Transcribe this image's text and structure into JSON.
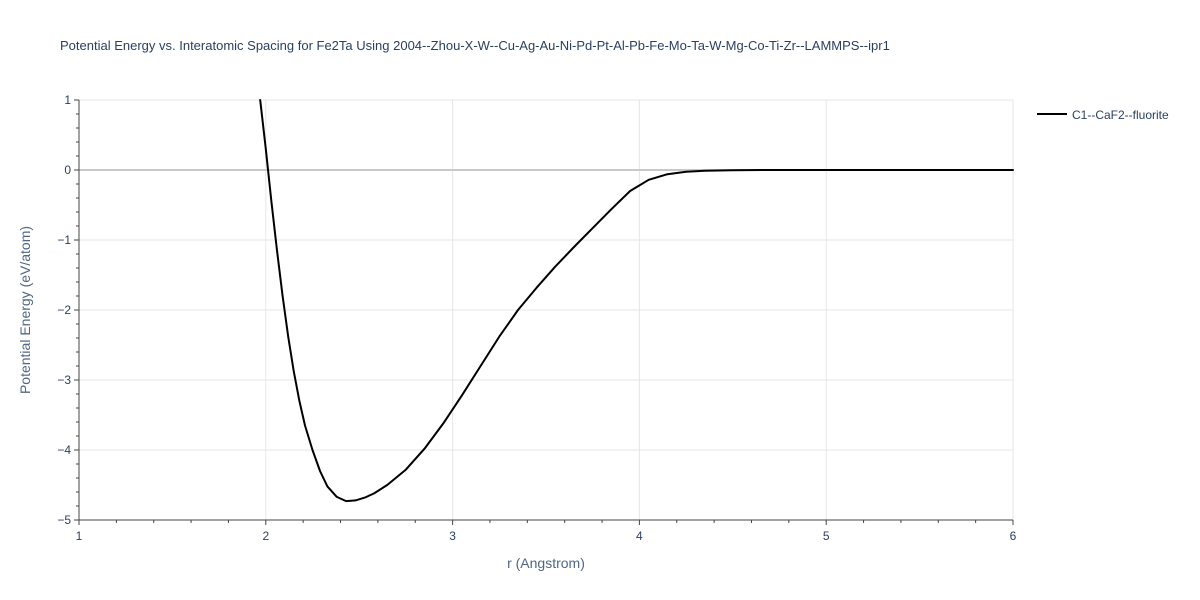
{
  "chart_data": {
    "type": "line",
    "title": "Potential Energy vs. Interatomic Spacing for Fe2Ta Using 2004--Zhou-X-W--Cu-Ag-Au-Ni-Pd-Pt-Al-Pb-Fe-Mo-Ta-W-Mg-Co-Ti-Zr--LAMMPS--ipr1",
    "xlabel": "r (Angstrom)",
    "ylabel": "Potential Energy (eV/atom)",
    "xlim": [
      1,
      6
    ],
    "ylim": [
      -5,
      1
    ],
    "xticks": [
      "1",
      "2",
      "3",
      "4",
      "5",
      "6"
    ],
    "yticks": [
      "1",
      "0",
      "−1",
      "−2",
      "−3",
      "−4",
      "−5"
    ],
    "grid": true,
    "legend_position": "top-right",
    "series": [
      {
        "name": "C1--CaF2--fluorite",
        "color": "#000000",
        "x": [
          1.97,
          2.0,
          2.03,
          2.06,
          2.09,
          2.12,
          2.15,
          2.18,
          2.21,
          2.25,
          2.29,
          2.33,
          2.38,
          2.43,
          2.48,
          2.53,
          2.58,
          2.65,
          2.75,
          2.85,
          2.95,
          3.05,
          3.15,
          3.25,
          3.35,
          3.45,
          3.55,
          3.65,
          3.75,
          3.85,
          3.95,
          4.05,
          4.15,
          4.25,
          4.35,
          4.5,
          4.7,
          5.0,
          5.5,
          6.0
        ],
        "y": [
          1.0,
          0.3,
          -0.45,
          -1.15,
          -1.8,
          -2.38,
          -2.88,
          -3.3,
          -3.65,
          -4.0,
          -4.3,
          -4.52,
          -4.67,
          -4.73,
          -4.72,
          -4.68,
          -4.62,
          -4.5,
          -4.28,
          -3.98,
          -3.62,
          -3.22,
          -2.8,
          -2.38,
          -2.0,
          -1.68,
          -1.38,
          -1.1,
          -0.83,
          -0.56,
          -0.3,
          -0.14,
          -0.06,
          -0.025,
          -0.01,
          -0.003,
          0.0,
          0.0,
          0.0,
          0.0
        ]
      }
    ]
  }
}
